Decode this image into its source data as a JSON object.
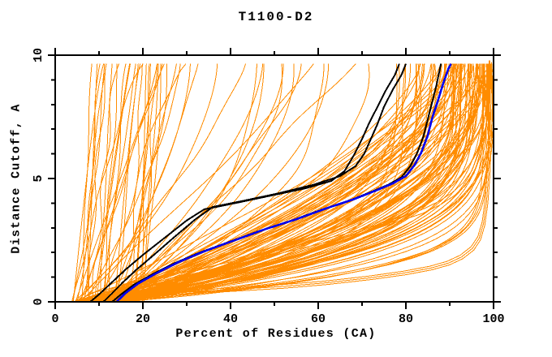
{
  "chart_data": {
    "type": "line",
    "title": "T1100-D2",
    "xlabel": "Percent of Residues (CA)",
    "ylabel": "Distance Cutoff, A",
    "xlim": [
      0,
      100
    ],
    "ylim": [
      0,
      10
    ],
    "x_major_ticks": [
      0,
      20,
      40,
      60,
      80,
      100
    ],
    "x_tick_labels": [
      "0",
      "20",
      "40",
      "60",
      "80",
      "100"
    ],
    "x_minor_ticks": [
      10,
      30,
      50,
      70,
      90
    ],
    "y_major_ticks": [
      0,
      5,
      10
    ],
    "y_tick_labels": [
      "0",
      "5",
      "10"
    ],
    "y_minor_ticks": [
      1,
      2,
      3,
      4,
      6,
      7,
      8,
      9
    ],
    "grid": false,
    "legend": "none",
    "y_data_max": 9.65,
    "colors": {
      "ensemble": "#FF8C00",
      "highlight": "#000000",
      "reference": "#0000EE",
      "axis": "#000000",
      "background": "#FFFFFF"
    },
    "highlighted_series": [
      {
        "name": "model-black-1",
        "color": "#000000",
        "width": 2,
        "points": [
          [
            8,
            0
          ],
          [
            10,
            0.3
          ],
          [
            13,
            0.8
          ],
          [
            16,
            1.3
          ],
          [
            20,
            1.9
          ],
          [
            25,
            2.6
          ],
          [
            30,
            3.3
          ],
          [
            34,
            3.75
          ],
          [
            41,
            4.0
          ],
          [
            49,
            4.3
          ],
          [
            57,
            4.6
          ],
          [
            63,
            4.9
          ],
          [
            66,
            5.3
          ],
          [
            68,
            5.9
          ],
          [
            70,
            6.6
          ],
          [
            71.5,
            7.2
          ],
          [
            73.5,
            7.9
          ],
          [
            75.5,
            8.6
          ],
          [
            77.5,
            9.2
          ],
          [
            78.5,
            9.65
          ]
        ]
      },
      {
        "name": "model-black-2",
        "color": "#000000",
        "width": 2,
        "points": [
          [
            11,
            0
          ],
          [
            13,
            0.35
          ],
          [
            15.5,
            0.8
          ],
          [
            18.5,
            1.3
          ],
          [
            22.5,
            1.9
          ],
          [
            27,
            2.6
          ],
          [
            32,
            3.35
          ],
          [
            36,
            3.85
          ],
          [
            43,
            4.1
          ],
          [
            51,
            4.4
          ],
          [
            59,
            4.75
          ],
          [
            65,
            5.1
          ],
          [
            68.5,
            5.5
          ],
          [
            70.5,
            6.0
          ],
          [
            72,
            6.6
          ],
          [
            73.5,
            7.2
          ],
          [
            75,
            7.9
          ],
          [
            77,
            8.6
          ],
          [
            79,
            9.2
          ],
          [
            80,
            9.65
          ]
        ]
      },
      {
        "name": "model-black-3",
        "color": "#000000",
        "width": 2,
        "points": [
          [
            13,
            0
          ],
          [
            15,
            0.3
          ],
          [
            18,
            0.7
          ],
          [
            22,
            1.1
          ],
          [
            27,
            1.55
          ],
          [
            33,
            2.0
          ],
          [
            40,
            2.45
          ],
          [
            47,
            2.9
          ],
          [
            54,
            3.3
          ],
          [
            61,
            3.75
          ],
          [
            67,
            4.1
          ],
          [
            72,
            4.45
          ],
          [
            76,
            4.75
          ],
          [
            79,
            5.05
          ],
          [
            81,
            5.5
          ],
          [
            82.5,
            6.0
          ],
          [
            84,
            6.7
          ],
          [
            85,
            7.4
          ],
          [
            86,
            8.1
          ],
          [
            87,
            8.8
          ],
          [
            87.7,
            9.4
          ],
          [
            88,
            9.65
          ]
        ]
      },
      {
        "name": "model-blue",
        "color": "#0000EE",
        "width": 2.6,
        "points": [
          [
            14,
            0
          ],
          [
            16,
            0.35
          ],
          [
            19,
            0.75
          ],
          [
            23,
            1.15
          ],
          [
            28,
            1.6
          ],
          [
            34,
            2.05
          ],
          [
            41,
            2.5
          ],
          [
            48,
            2.95
          ],
          [
            55,
            3.35
          ],
          [
            62,
            3.8
          ],
          [
            68,
            4.15
          ],
          [
            73,
            4.5
          ],
          [
            77,
            4.8
          ],
          [
            80,
            5.1
          ],
          [
            82,
            5.55
          ],
          [
            83.5,
            6.05
          ],
          [
            85,
            6.75
          ],
          [
            86,
            7.45
          ],
          [
            87.3,
            8.15
          ],
          [
            88.5,
            8.85
          ],
          [
            89.7,
            9.45
          ],
          [
            90.3,
            9.65
          ]
        ]
      }
    ],
    "outlier_series": [
      {
        "name": "low-tail-1",
        "points": [
          [
            10,
            0.12
          ],
          [
            20,
            0.22
          ],
          [
            30,
            0.32
          ],
          [
            40,
            0.42
          ],
          [
            52,
            0.55
          ],
          [
            62,
            0.7
          ],
          [
            72,
            0.9
          ],
          [
            80,
            1.1
          ],
          [
            86,
            1.3
          ],
          [
            90,
            1.5
          ],
          [
            93,
            1.75
          ],
          [
            95.5,
            2.1
          ],
          [
            97,
            2.5
          ],
          [
            98,
            3.1
          ],
          [
            98.7,
            4.0
          ],
          [
            99.2,
            5.2
          ],
          [
            99.5,
            6.6
          ],
          [
            99.7,
            8.0
          ],
          [
            99.8,
            9.65
          ]
        ]
      },
      {
        "name": "low-tail-2",
        "base": "low-tail-1",
        "dy": 0.07,
        "dx": -0.3
      },
      {
        "name": "low-tail-3",
        "base": "low-tail-1",
        "dy": 0.14,
        "dx": -0.6
      },
      {
        "name": "low-pair-1",
        "points": [
          [
            8,
            0.2
          ],
          [
            16,
            0.55
          ],
          [
            24,
            0.85
          ],
          [
            33,
            1.2
          ],
          [
            42,
            1.55
          ],
          [
            50,
            1.9
          ],
          [
            58,
            2.25
          ],
          [
            66,
            2.6
          ],
          [
            73,
            2.95
          ],
          [
            79,
            3.3
          ],
          [
            84,
            3.6
          ],
          [
            88,
            3.95
          ],
          [
            91,
            4.3
          ],
          [
            93.5,
            4.7
          ],
          [
            95.5,
            5.2
          ],
          [
            97,
            5.9
          ],
          [
            98,
            6.8
          ],
          [
            98.8,
            8.0
          ],
          [
            99.3,
            9.2
          ],
          [
            99.4,
            9.65
          ]
        ]
      },
      {
        "name": "low-pair-2",
        "base": "low-pair-1",
        "dy": 0.13,
        "dx": -0.4
      }
    ],
    "ensemble": {
      "name": "all-models",
      "count": 153,
      "seed": 1234,
      "wobble": 0.55,
      "groups": [
        {
          "name": "main-band",
          "count": 92,
          "x0": [
            4,
            17
          ],
          "xtop": [
            76,
            100
          ],
          "bend": [
            1.3,
            4.7
          ],
          "skew": 0.5
        },
        {
          "name": "right-pile",
          "count": 14,
          "x0": [
            8,
            18
          ],
          "xtop": [
            97,
            100
          ],
          "bend": [
            4,
            9
          ]
        },
        {
          "name": "poor-steep",
          "count": 26,
          "x0": [
            4,
            15
          ],
          "span": [
            2,
            22
          ],
          "bend": [
            0.7,
            1.6
          ]
        },
        {
          "name": "vertical-bundle",
          "count": 7,
          "x0": [
            17,
            20.5
          ],
          "span": [
            1,
            4
          ],
          "bend": [
            0.8,
            1.4
          ]
        },
        {
          "name": "mid-quality",
          "count": 14,
          "x0": [
            4,
            16
          ],
          "xtop": [
            34,
            74
          ],
          "bend": [
            1.0,
            2.6
          ]
        }
      ]
    }
  }
}
